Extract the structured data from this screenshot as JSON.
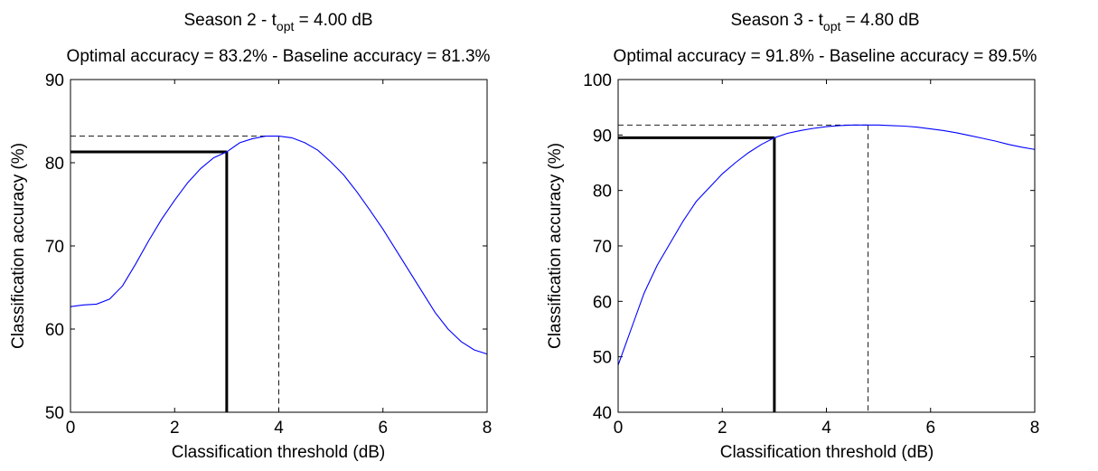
{
  "chart_data": [
    {
      "type": "line",
      "title_prefix": "Season 2 - t",
      "title_sub": "opt",
      "title_suffix": " = 4.00 dB",
      "subtitle": "Optimal accuracy = 83.2% - Baseline accuracy = 81.3%",
      "xlabel": "Classification threshold (dB)",
      "ylabel": "Classification accuracy (%)",
      "xlim": [
        0,
        8
      ],
      "ylim": [
        50,
        90
      ],
      "xticks": [
        0,
        2,
        4,
        6,
        8
      ],
      "yticks": [
        50,
        60,
        70,
        80,
        90
      ],
      "grid": false,
      "series": [
        {
          "color": "#0000ff",
          "x": [
            0,
            0.25,
            0.5,
            0.75,
            1.0,
            1.25,
            1.5,
            1.75,
            2.0,
            2.25,
            2.5,
            2.75,
            3.0,
            3.25,
            3.5,
            3.75,
            4.0,
            4.25,
            4.5,
            4.75,
            5.0,
            5.25,
            5.5,
            5.75,
            6.0,
            6.25,
            6.5,
            6.75,
            7.0,
            7.25,
            7.5,
            7.75,
            8.0
          ],
          "y": [
            62.7,
            62.9,
            63.0,
            63.6,
            65.2,
            67.8,
            70.6,
            73.2,
            75.5,
            77.6,
            79.3,
            80.6,
            81.3,
            82.4,
            82.9,
            83.2,
            83.2,
            83.0,
            82.4,
            81.5,
            80.1,
            78.5,
            76.5,
            74.3,
            72.0,
            69.5,
            67.0,
            64.5,
            62.0,
            60.0,
            58.5,
            57.5,
            57.0
          ]
        }
      ],
      "optimal_x": 4.0,
      "optimal_y": 83.2,
      "baseline_x": 3.0,
      "baseline_y": 81.3,
      "line_colors": {
        "reference": "#000000",
        "dashed": "#000000"
      }
    },
    {
      "type": "line",
      "title_prefix": "Season 3 - t",
      "title_sub": "opt",
      "title_suffix": " = 4.80 dB",
      "subtitle": "Optimal accuracy = 91.8% - Baseline accuracy = 89.5%",
      "xlabel": "Classification threshold (dB)",
      "ylabel": "Classification accuracy (%)",
      "xlim": [
        0,
        8
      ],
      "ylim": [
        40,
        100
      ],
      "xticks": [
        0,
        2,
        4,
        6,
        8
      ],
      "yticks": [
        40,
        50,
        60,
        70,
        80,
        90,
        100
      ],
      "grid": false,
      "series": [
        {
          "color": "#0000ff",
          "x": [
            0,
            0.25,
            0.5,
            0.75,
            1.0,
            1.25,
            1.5,
            1.75,
            2.0,
            2.25,
            2.5,
            2.75,
            3.0,
            3.25,
            3.5,
            3.75,
            4.0,
            4.25,
            4.5,
            4.75,
            5.0,
            5.25,
            5.5,
            5.75,
            6.0,
            6.25,
            6.5,
            6.75,
            7.0,
            7.25,
            7.5,
            7.75,
            8.0
          ],
          "y": [
            48.5,
            55.0,
            61.5,
            66.5,
            70.5,
            74.5,
            78.0,
            80.5,
            83.0,
            85.0,
            86.8,
            88.3,
            89.5,
            90.3,
            90.8,
            91.2,
            91.5,
            91.7,
            91.8,
            91.8,
            91.8,
            91.7,
            91.6,
            91.4,
            91.1,
            90.8,
            90.4,
            89.9,
            89.4,
            88.9,
            88.3,
            87.8,
            87.4
          ]
        }
      ],
      "optimal_x": 4.8,
      "optimal_y": 91.8,
      "baseline_x": 3.0,
      "baseline_y": 89.5,
      "line_colors": {
        "reference": "#000000",
        "dashed": "#000000"
      }
    }
  ]
}
